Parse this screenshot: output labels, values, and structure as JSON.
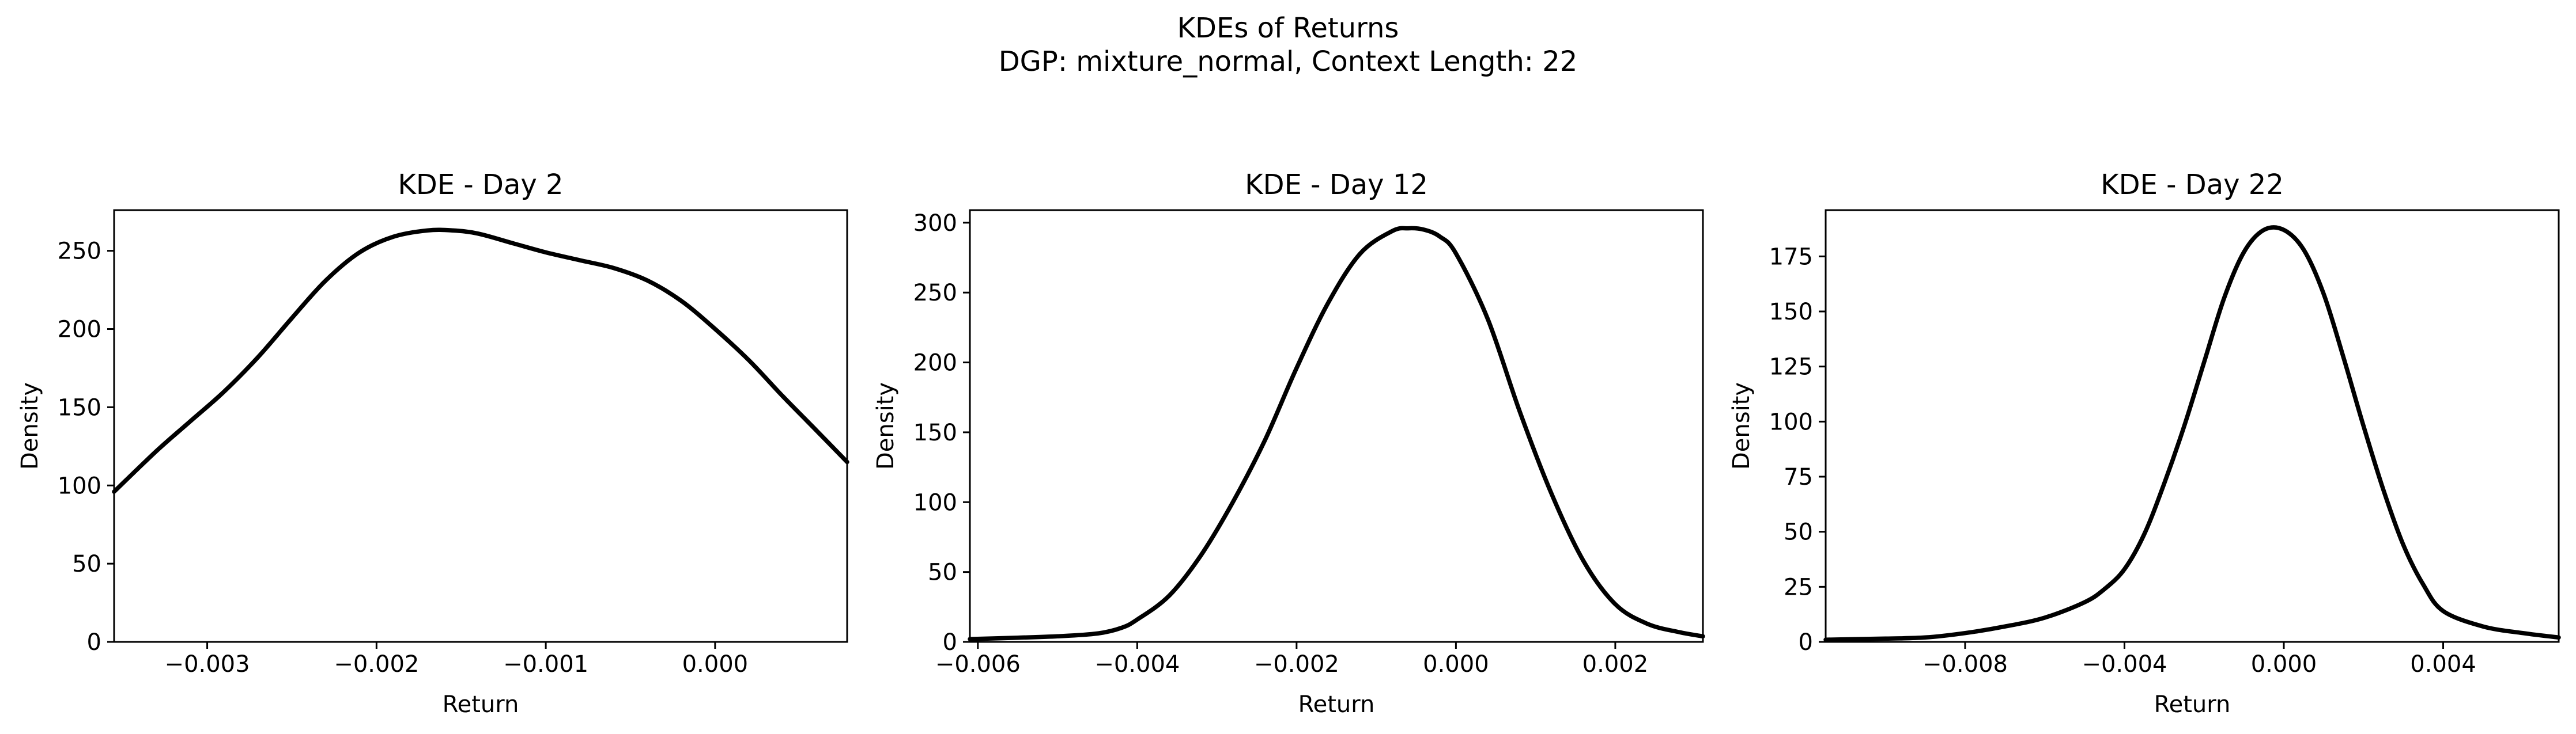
{
  "figure": {
    "suptitle_line1": "KDEs of Returns",
    "suptitle_line2": "DGP: mixture_normal, Context Length: 22"
  },
  "chart_data": [
    {
      "type": "line",
      "title": "KDE - Day 2",
      "xlabel": "Return",
      "ylabel": "Density",
      "xlim": [
        -0.00355,
        0.00078
      ],
      "ylim": [
        0,
        276
      ],
      "xticks": [
        -0.003,
        -0.002,
        -0.001,
        0.0
      ],
      "xtick_labels": [
        "−0.003",
        "−0.002",
        "−0.001",
        "0.000"
      ],
      "yticks": [
        0,
        50,
        100,
        150,
        200,
        250
      ],
      "ytick_labels": [
        "0",
        "50",
        "100",
        "150",
        "200",
        "250"
      ],
      "grid": false,
      "series": [
        {
          "color": "#000000",
          "x": [
            -0.00355,
            -0.0033,
            -0.0031,
            -0.0029,
            -0.0027,
            -0.0025,
            -0.0023,
            -0.0021,
            -0.0019,
            -0.0017,
            -0.00155,
            -0.0014,
            -0.0012,
            -0.001,
            -0.0008,
            -0.0006,
            -0.0004,
            -0.0002,
            0.0,
            0.0002,
            0.0004,
            0.0006,
            0.00078
          ],
          "y": [
            96,
            122,
            141,
            160,
            182,
            207,
            231,
            249,
            259,
            263,
            263,
            261,
            255,
            249,
            244,
            239,
            231,
            218,
            200,
            180,
            157,
            135,
            115
          ]
        }
      ]
    },
    {
      "type": "line",
      "title": "KDE - Day 12",
      "xlabel": "Return",
      "ylabel": "Density",
      "xlim": [
        -0.0061,
        0.0031
      ],
      "ylim": [
        0,
        309
      ],
      "xticks": [
        -0.006,
        -0.004,
        -0.002,
        0.0,
        0.002
      ],
      "xtick_labels": [
        "−0.006",
        "−0.004",
        "−0.002",
        "0.000",
        "0.002"
      ],
      "yticks": [
        0,
        50,
        100,
        150,
        200,
        250,
        300
      ],
      "ytick_labels": [
        "0",
        "50",
        "100",
        "150",
        "200",
        "250",
        "300"
      ],
      "grid": false,
      "series": [
        {
          "color": "#000000",
          "x": [
            -0.0061,
            -0.0055,
            -0.005,
            -0.0045,
            -0.0042,
            -0.004,
            -0.0036,
            -0.0032,
            -0.0028,
            -0.0024,
            -0.002,
            -0.0016,
            -0.0012,
            -0.0008,
            -0.0006,
            -0.0004,
            -0.0002,
            0.0,
            0.0004,
            0.0008,
            0.0012,
            0.0016,
            0.002,
            0.0024,
            0.0028,
            0.0031
          ],
          "y": [
            2,
            3,
            4,
            6,
            10,
            16,
            33,
            62,
            100,
            144,
            196,
            243,
            278,
            294,
            296,
            295,
            290,
            278,
            231,
            165,
            106,
            58,
            27,
            13,
            7,
            4
          ]
        }
      ]
    },
    {
      "type": "line",
      "title": "KDE - Day 22",
      "xlabel": "Return",
      "ylabel": "Density",
      "xlim": [
        -0.0115,
        0.0069
      ],
      "ylim": [
        0,
        196
      ],
      "xticks": [
        -0.008,
        -0.004,
        0.0,
        0.004
      ],
      "xtick_labels": [
        "−0.008",
        "−0.004",
        "0.000",
        "0.004"
      ],
      "yticks": [
        0,
        25,
        50,
        75,
        100,
        125,
        150,
        175
      ],
      "ytick_labels": [
        "0",
        "25",
        "50",
        "75",
        "100",
        "125",
        "150",
        "175"
      ],
      "grid": false,
      "series": [
        {
          "color": "#000000",
          "x": [
            -0.0115,
            -0.01,
            -0.009,
            -0.008,
            -0.007,
            -0.006,
            -0.005,
            -0.0045,
            -0.004,
            -0.0035,
            -0.003,
            -0.0025,
            -0.002,
            -0.0015,
            -0.001,
            -0.0005,
            0.0,
            0.0005,
            0.001,
            0.0015,
            0.002,
            0.0025,
            0.003,
            0.0035,
            0.004,
            0.005,
            0.006,
            0.0069
          ],
          "y": [
            1,
            1.5,
            2,
            4,
            7,
            11,
            18,
            24,
            33,
            49,
            72,
            98,
            127,
            156,
            177,
            187,
            187,
            178,
            158,
            129,
            98,
            69,
            44,
            26,
            14,
            7,
            4,
            2
          ]
        }
      ]
    }
  ]
}
